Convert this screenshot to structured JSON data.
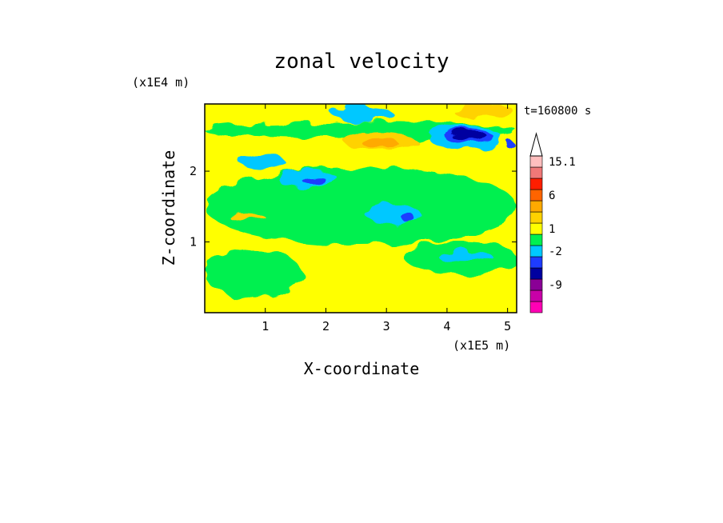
{
  "chart_data": {
    "type": "heatmap",
    "title": "zonal velocity",
    "xlabel": "X-coordinate",
    "ylabel": "Z-coordinate",
    "x_unit": "(x1E5 m)",
    "y_unit": "(x1E4 m)",
    "time_label": "t=160800 s",
    "xlim": [
      0,
      5.15
    ],
    "ylim": [
      0,
      2.95
    ],
    "x_ticks": [
      1,
      2,
      3,
      4,
      5
    ],
    "y_ticks": [
      1,
      2
    ],
    "colorbar": {
      "labels": [
        "15.1",
        "6",
        "1",
        "-2",
        "-9"
      ],
      "bins": [
        {
          "color": "#ff00b4"
        },
        {
          "color": "#c800a8"
        },
        {
          "color": "#8a0096"
        },
        {
          "color": "#0000a0"
        },
        {
          "color": "#1e3cff"
        },
        {
          "color": "#00c8ff"
        },
        {
          "color": "#00f050"
        },
        {
          "color": "#ffff00"
        },
        {
          "color": "#ffd200"
        },
        {
          "color": "#ffaa00"
        },
        {
          "color": "#ff6400"
        },
        {
          "color": "#ff1e00"
        },
        {
          "color": "#f07878"
        },
        {
          "color": "#ffbebe"
        }
      ],
      "extend_max_color": "#ffffff"
    },
    "field": {
      "background_color": "#ffff00",
      "regions": [
        {
          "color": "#00f050",
          "x": [
            0.0,
            5.15
          ],
          "y": [
            0.95,
            2.05
          ],
          "w": 5.15,
          "h": 1.1
        },
        {
          "color": "#00f050",
          "x": [
            0.0,
            1.6
          ],
          "y": [
            0.2,
            0.9
          ],
          "w": 1.6,
          "h": 0.7
        },
        {
          "color": "#00f050",
          "x": [
            3.3,
            5.15
          ],
          "y": [
            0.55,
            1.0
          ],
          "w": 1.85,
          "h": 0.45
        },
        {
          "color": "#00f050",
          "x": [
            0.0,
            5.15
          ],
          "y": [
            2.45,
            2.7
          ],
          "w": 5.15,
          "h": 0.25
        },
        {
          "color": "#ffd200",
          "x": [
            2.3,
            3.5
          ],
          "y": [
            2.3,
            2.55
          ],
          "w": 1.2,
          "h": 0.25
        },
        {
          "color": "#ffaa00",
          "x": [
            2.6,
            3.2
          ],
          "y": [
            2.33,
            2.45
          ],
          "w": 0.6,
          "h": 0.12
        },
        {
          "color": "#ffd200",
          "x": [
            4.1,
            5.1
          ],
          "y": [
            2.75,
            2.95
          ],
          "w": 1.0,
          "h": 0.2
        },
        {
          "color": "#ffd200",
          "x": [
            0.4,
            1.0
          ],
          "y": [
            1.3,
            1.4
          ],
          "w": 0.6,
          "h": 0.1
        },
        {
          "color": "#00c8ff",
          "x": [
            2.1,
            3.1
          ],
          "y": [
            2.7,
            2.93
          ],
          "w": 1.0,
          "h": 0.23
        },
        {
          "color": "#00c8ff",
          "x": [
            3.7,
            4.9
          ],
          "y": [
            2.3,
            2.65
          ],
          "w": 1.2,
          "h": 0.35
        },
        {
          "color": "#00c8ff",
          "x": [
            1.2,
            2.2
          ],
          "y": [
            1.78,
            2.0
          ],
          "w": 1.0,
          "h": 0.22
        },
        {
          "color": "#00c8ff",
          "x": [
            2.65,
            3.55
          ],
          "y": [
            1.25,
            1.55
          ],
          "w": 0.9,
          "h": 0.3
        },
        {
          "color": "#00c8ff",
          "x": [
            3.85,
            4.75
          ],
          "y": [
            0.72,
            0.87
          ],
          "w": 0.9,
          "h": 0.15
        },
        {
          "color": "#00c8ff",
          "x": [
            0.55,
            1.3
          ],
          "y": [
            2.05,
            2.25
          ],
          "w": 0.75,
          "h": 0.2
        },
        {
          "color": "#1e3cff",
          "x": [
            3.95,
            4.75
          ],
          "y": [
            2.4,
            2.6
          ],
          "w": 0.8,
          "h": 0.2
        },
        {
          "color": "#0000a0",
          "x": [
            4.05,
            4.65
          ],
          "y": [
            2.45,
            2.57
          ],
          "w": 0.6,
          "h": 0.12
        },
        {
          "color": "#1e3cff",
          "x": [
            1.6,
            2.0
          ],
          "y": [
            1.82,
            1.93
          ],
          "w": 0.4,
          "h": 0.11
        },
        {
          "color": "#1e3cff",
          "x": [
            3.25,
            3.45
          ],
          "y": [
            1.28,
            1.42
          ],
          "w": 0.2,
          "h": 0.14
        },
        {
          "color": "#1e3cff",
          "x": [
            5.0,
            5.12
          ],
          "y": [
            2.3,
            2.42
          ],
          "w": 0.12,
          "h": 0.12
        }
      ]
    }
  }
}
